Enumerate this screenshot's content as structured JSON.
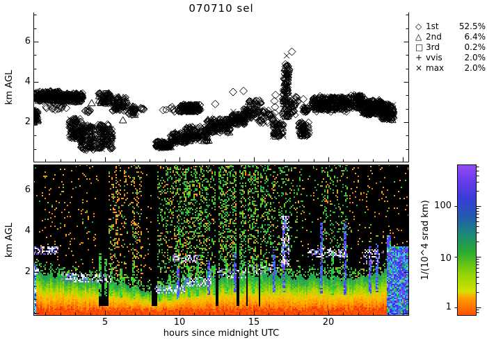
{
  "title": "070710 sel",
  "legend": {
    "items": [
      {
        "glyph": "◇",
        "symbol": "diamond",
        "label": "1st",
        "pct": "52.5%"
      },
      {
        "glyph": "△",
        "symbol": "triangle",
        "label": "2nd",
        "pct": "6.4%"
      },
      {
        "glyph": "□",
        "symbol": "square",
        "label": "3rd",
        "pct": "0.2%"
      },
      {
        "glyph": "+",
        "symbol": "plus",
        "label": "vvis",
        "pct": "2.0%"
      },
      {
        "glyph": "×",
        "symbol": "x",
        "label": "max",
        "pct": "2.0%"
      }
    ]
  },
  "chart_data": [
    {
      "type": "scatter",
      "title": "070710 sel",
      "xlabel": "hours since midnight UTC",
      "ylabel": "km AGL",
      "xlim": [
        0,
        25.4
      ],
      "ylim": [
        0,
        7.45
      ],
      "x_ticks": [
        5,
        10,
        15,
        20
      ],
      "x_tick_labels": [
        "5",
        "10",
        "15",
        "20"
      ],
      "y_ticks": [
        2,
        4,
        6
      ],
      "y_tick_labels": [
        "2",
        "4",
        "6"
      ],
      "legend_position": "right",
      "series_note": "cloud-base height clusters [h0,h1,km0,km1,n,style]; style m=mixed symbols, o=sparse open diamonds",
      "clusters": [
        [
          0.0,
          0.5,
          1.95,
          2.6,
          70,
          "m"
        ],
        [
          0.05,
          0.6,
          3.1,
          3.5,
          30,
          "m"
        ],
        [
          0.5,
          2.0,
          3.05,
          3.55,
          200,
          "m"
        ],
        [
          1.9,
          3.5,
          3.0,
          3.45,
          170,
          "m"
        ],
        [
          0.9,
          2.4,
          2.6,
          3.0,
          22,
          "o"
        ],
        [
          2.6,
          3.4,
          1.15,
          2.2,
          110,
          "m"
        ],
        [
          3.35,
          4.3,
          0.6,
          1.85,
          150,
          "m"
        ],
        [
          3.6,
          4.15,
          2.4,
          2.62,
          7,
          "o"
        ],
        [
          4.5,
          5.5,
          0.65,
          1.9,
          140,
          "m"
        ],
        [
          4.55,
          5.35,
          2.9,
          3.45,
          70,
          "m"
        ],
        [
          5.5,
          6.45,
          2.55,
          3.25,
          90,
          "m"
        ],
        [
          6.55,
          7.1,
          2.35,
          2.8,
          40,
          "m"
        ],
        [
          7.35,
          7.6,
          2.5,
          2.72,
          6,
          "o"
        ],
        [
          8.4,
          9.45,
          0.72,
          1.06,
          100,
          "m"
        ],
        [
          9.4,
          10.4,
          0.95,
          1.5,
          80,
          "m"
        ],
        [
          9.35,
          10.05,
          2.5,
          2.78,
          10,
          "o"
        ],
        [
          10.05,
          11.4,
          2.5,
          2.9,
          170,
          "m"
        ],
        [
          10.35,
          11.95,
          1.05,
          1.8,
          140,
          "m"
        ],
        [
          11.85,
          13.4,
          1.45,
          2.2,
          160,
          "m"
        ],
        [
          13.35,
          14.4,
          1.85,
          2.4,
          90,
          "m"
        ],
        [
          14.25,
          15.25,
          2.15,
          2.7,
          70,
          "m"
        ],
        [
          14.6,
          15.5,
          2.85,
          3.12,
          22,
          "m"
        ],
        [
          15.25,
          16.3,
          1.95,
          2.6,
          40,
          "o"
        ],
        [
          16.25,
          17.0,
          1.25,
          2.1,
          70,
          "m"
        ],
        [
          16.9,
          17.35,
          2.25,
          3.6,
          70,
          "m"
        ],
        [
          17.0,
          17.35,
          3.6,
          4.5,
          45,
          "m"
        ],
        [
          17.05,
          17.4,
          4.55,
          4.9,
          16,
          "m"
        ],
        [
          17.4,
          17.8,
          2.35,
          3.05,
          30,
          "m"
        ],
        [
          17.75,
          18.35,
          2.85,
          3.3,
          10,
          "o"
        ],
        [
          18.0,
          18.7,
          1.3,
          2.0,
          70,
          "m"
        ],
        [
          18.3,
          18.75,
          2.45,
          2.85,
          28,
          "m"
        ],
        [
          18.95,
          21.4,
          2.6,
          3.25,
          300,
          "m"
        ],
        [
          21.4,
          22.3,
          2.65,
          3.35,
          110,
          "m"
        ],
        [
          22.25,
          23.65,
          2.35,
          3.1,
          220,
          "m"
        ],
        [
          23.55,
          24.4,
          2.1,
          2.95,
          150,
          "m"
        ],
        [
          19.0,
          21.5,
          2.5,
          3.35,
          14,
          "o"
        ],
        [
          22.0,
          24.3,
          2.2,
          3.15,
          12,
          "o"
        ]
      ],
      "singles": [
        [
          17.2,
          5.3,
          "x"
        ],
        [
          17.55,
          5.5,
          "d"
        ],
        [
          16.4,
          2.45,
          "d"
        ],
        [
          16.42,
          2.75,
          "d"
        ],
        [
          16.38,
          3.05,
          "d"
        ],
        [
          16.45,
          3.35,
          "d"
        ],
        [
          13.6,
          2.32,
          "p"
        ],
        [
          13.62,
          2.52,
          "x"
        ],
        [
          9.1,
          2.62,
          "c"
        ],
        [
          5.6,
          2.92,
          "c"
        ],
        [
          13.6,
          3.5,
          "d"
        ],
        [
          14.3,
          3.55,
          "d"
        ],
        [
          12.4,
          2.9,
          "d"
        ],
        [
          8.9,
          2.6,
          "d"
        ],
        [
          3.9,
          2.5,
          "d"
        ],
        [
          6.2,
          2.1,
          "t"
        ],
        [
          2.2,
          3.2,
          "t"
        ],
        [
          4.1,
          2.95,
          "t"
        ]
      ]
    },
    {
      "type": "heatmap",
      "xlabel": "hours since midnight UTC",
      "ylabel": "km AGL",
      "xlim": [
        0,
        25.4
      ],
      "ylim": [
        0,
        7.4
      ],
      "x_ticks": [
        5,
        10,
        15,
        20
      ],
      "x_tick_labels": [
        "5",
        "10",
        "15",
        "20"
      ],
      "y_ticks": [
        2,
        4,
        6
      ],
      "y_tick_labels": [
        "2",
        "4",
        "6"
      ],
      "colorbar": {
        "label": "1/(10^4 srad km)",
        "scale": "log",
        "ticks": [
          1,
          10,
          100
        ],
        "tick_labels": [
          "1",
          "10",
          "100"
        ],
        "gradient_top_to_bottom": [
          [
            0.0,
            "#9a4cf2"
          ],
          [
            0.1,
            "#6a3cee"
          ],
          [
            0.22,
            "#3b3cd8"
          ],
          [
            0.34,
            "#2458b0"
          ],
          [
            0.46,
            "#1b8878"
          ],
          [
            0.58,
            "#2aaa30"
          ],
          [
            0.72,
            "#90d408"
          ],
          [
            0.84,
            "#d4e000"
          ],
          [
            0.88,
            "#ffa000"
          ],
          [
            1.0,
            "#ff4e00"
          ]
        ]
      },
      "bl_top_km_by_hour": [
        2.1,
        1.9,
        1.8,
        1.75,
        1.65,
        1.5,
        1.45,
        1.3,
        1.0,
        1.15,
        1.35,
        1.55,
        1.65,
        1.7,
        1.78,
        1.82,
        1.88,
        1.8,
        1.72,
        1.78,
        1.72,
        1.66,
        1.72,
        1.88,
        2.1,
        2.2
      ],
      "bl_ramp": [
        [
          0.0,
          "#ff5500"
        ],
        [
          0.07,
          "#ee3300"
        ],
        [
          0.16,
          "#ff7700"
        ],
        [
          0.32,
          "#ffaa00"
        ],
        [
          0.46,
          "#eecc00"
        ],
        [
          0.6,
          "#a8d800"
        ],
        [
          0.74,
          "#66c81e"
        ],
        [
          0.87,
          "#30b040"
        ],
        [
          1.0,
          "#1da060"
        ]
      ],
      "noise_bands": [
        {
          "h0": 0.0,
          "h1": 4.55,
          "o": 0.03,
          "g": 0.004
        },
        {
          "h0": 4.55,
          "h1": 5.2,
          "o": 0.002,
          "g": 0.0
        },
        {
          "h0": 5.2,
          "h1": 6.45,
          "o": 0.1,
          "g": 0.03
        },
        {
          "h0": 6.45,
          "h1": 6.8,
          "o": 0.035,
          "g": 0.006
        },
        {
          "h0": 6.8,
          "h1": 7.5,
          "o": 0.11,
          "g": 0.05
        },
        {
          "h0": 7.5,
          "h1": 8.5,
          "o": 0.03,
          "g": 0.004
        },
        {
          "h0": 8.5,
          "h1": 16.2,
          "o": 0.06,
          "g": 0.17
        },
        {
          "h0": 16.2,
          "h1": 18.3,
          "o": 0.05,
          "g": 0.15
        },
        {
          "h0": 18.3,
          "h1": 19.4,
          "o": 0.04,
          "g": 0.04
        },
        {
          "h0": 19.4,
          "h1": 21.3,
          "o": 0.05,
          "g": 0.14
        },
        {
          "h0": 21.3,
          "h1": 25.5,
          "o": 0.03,
          "g": 0.004
        }
      ],
      "gaps_hours": [
        [
          4.55,
          5.2
        ],
        [
          8.15,
          8.5
        ],
        [
          12.45,
          12.65
        ],
        [
          13.8,
          14.0
        ],
        [
          14.45,
          14.62
        ],
        [
          15.3,
          15.45
        ]
      ],
      "mid_suppress": [
        [
          17.7,
          19.4,
          1.9,
          4.4,
          0.25
        ]
      ],
      "clouds": [
        [
          0.1,
          1.8,
          2.85,
          3.25,
          0.5
        ],
        [
          0.0,
          0.6,
          1.9,
          2.3,
          0.4
        ],
        [
          2.1,
          3.6,
          1.55,
          2.0,
          0.45
        ],
        [
          3.6,
          5.4,
          1.5,
          1.85,
          0.45
        ],
        [
          8.4,
          10.3,
          0.95,
          1.35,
          0.5
        ],
        [
          10.3,
          12.1,
          1.3,
          1.75,
          0.45
        ],
        [
          9.6,
          11.3,
          2.5,
          2.85,
          0.5
        ],
        [
          12.0,
          14.4,
          1.7,
          2.15,
          0.25
        ],
        [
          14.4,
          16.6,
          1.9,
          2.35,
          0.22
        ],
        [
          16.85,
          17.3,
          2.3,
          4.7,
          0.5
        ],
        [
          18.6,
          21.3,
          2.75,
          3.2,
          0.4
        ],
        [
          22.4,
          23.4,
          2.4,
          3.1,
          0.35
        ],
        [
          23.6,
          24.1,
          2.9,
          3.3,
          0.3
        ]
      ],
      "streaks": [
        [
          4.6,
          3.0,
          "g"
        ],
        [
          5.0,
          2.6,
          "g"
        ],
        [
          5.35,
          2.4,
          "g"
        ],
        [
          6.05,
          2.2,
          "g"
        ],
        [
          6.9,
          2.6,
          "g"
        ],
        [
          8.6,
          1.6,
          "g"
        ],
        [
          9.3,
          1.9,
          "g"
        ],
        [
          9.85,
          2.2,
          "b"
        ],
        [
          10.6,
          2.3,
          "g"
        ],
        [
          11.2,
          2.5,
          "g"
        ],
        [
          11.9,
          2.6,
          "b"
        ],
        [
          12.3,
          2.4,
          "g"
        ],
        [
          13.1,
          2.7,
          "g"
        ],
        [
          13.65,
          2.9,
          "b"
        ],
        [
          14.2,
          2.6,
          "g"
        ],
        [
          14.9,
          2.8,
          "g"
        ],
        [
          15.5,
          2.7,
          "g"
        ],
        [
          16.35,
          3.1,
          "b"
        ],
        [
          17.0,
          4.6,
          "b"
        ],
        [
          19.5,
          4.4,
          "b"
        ],
        [
          20.2,
          3.0,
          "g"
        ],
        [
          21.1,
          4.5,
          "b"
        ],
        [
          22.75,
          3.2,
          "b"
        ],
        [
          23.25,
          3.4,
          "b"
        ]
      ],
      "edge_columns": {
        "left": [
          0,
          0.4,
          2.35
        ],
        "right": [
          23.95,
          24.6,
          3.8
        ]
      }
    }
  ],
  "colors": {
    "fg": "#000000",
    "bg": "#ffffff",
    "noise_orange": [
      "#ff9800",
      "#ffaa22",
      "#ee8800"
    ],
    "noise_green": [
      "#22cc33",
      "#44dd22",
      "#11bb55",
      "#66dd11",
      "#22aa44"
    ],
    "cloud": [
      "#ffffff",
      "#ffffff",
      "#ccd6ff",
      "#8899ff",
      "#5566ee",
      "#9944dd"
    ],
    "streak_g": [
      "#33cc44",
      "#55dd22",
      "#22bb55"
    ],
    "streak_b": [
      "#4455ee",
      "#5533dd",
      "#3399ee",
      "#6644ff"
    ],
    "edge_left": [
      "#2233dd",
      "#3355ff",
      "#22ccee",
      "#33bb88",
      "#55ddff",
      "#ffffff"
    ],
    "edge_right": [
      "#5522ee",
      "#3344ff",
      "#2299ee",
      "#7744ee",
      "#44ccff"
    ]
  }
}
